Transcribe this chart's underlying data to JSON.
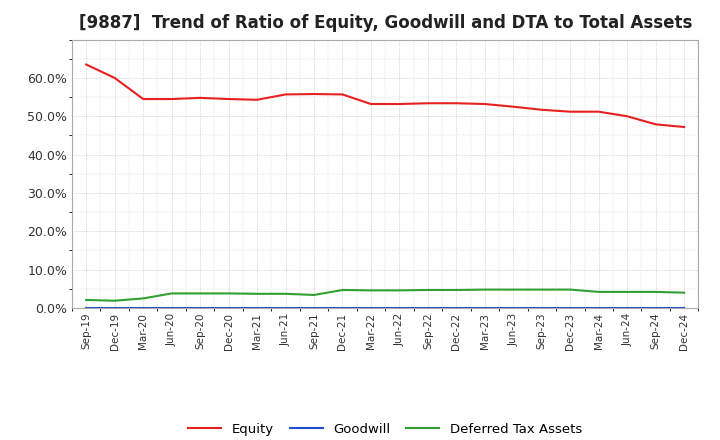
{
  "title": "[9887]  Trend of Ratio of Equity, Goodwill and DTA to Total Assets",
  "x_labels": [
    "Sep-19",
    "Dec-19",
    "Mar-20",
    "Jun-20",
    "Sep-20",
    "Dec-20",
    "Mar-21",
    "Jun-21",
    "Sep-21",
    "Dec-21",
    "Mar-22",
    "Jun-22",
    "Sep-22",
    "Dec-22",
    "Mar-23",
    "Jun-23",
    "Sep-23",
    "Dec-23",
    "Mar-24",
    "Jun-24",
    "Sep-24",
    "Dec-24"
  ],
  "equity": [
    0.635,
    0.6,
    0.545,
    0.545,
    0.548,
    0.545,
    0.543,
    0.557,
    0.558,
    0.557,
    0.532,
    0.532,
    0.534,
    0.534,
    0.532,
    0.525,
    0.517,
    0.512,
    0.512,
    0.5,
    0.479,
    0.472
  ],
  "goodwill": [
    0.0,
    0.0,
    0.0,
    0.0,
    0.0,
    0.0,
    0.0,
    0.0,
    0.0,
    0.0,
    0.0,
    0.0,
    0.0,
    0.0,
    0.0,
    0.0,
    0.0,
    0.0,
    0.0,
    0.0,
    0.0,
    0.0
  ],
  "dta": [
    0.021,
    0.019,
    0.025,
    0.038,
    0.038,
    0.038,
    0.037,
    0.037,
    0.034,
    0.047,
    0.046,
    0.046,
    0.047,
    0.047,
    0.048,
    0.048,
    0.048,
    0.048,
    0.042,
    0.042,
    0.042,
    0.04
  ],
  "equity_color": "#e82020",
  "goodwill_color": "#2050cc",
  "dta_color": "#30a030",
  "bg_color": "#ffffff",
  "plot_bg_color": "#ffffff",
  "grid_color": "#999999",
  "ylim": [
    0.0,
    0.7
  ],
  "yticks": [
    0.0,
    0.1,
    0.2,
    0.3,
    0.4,
    0.5,
    0.6
  ],
  "title_fontsize": 12,
  "legend_labels": [
    "Equity",
    "Goodwill",
    "Deferred Tax Assets"
  ]
}
